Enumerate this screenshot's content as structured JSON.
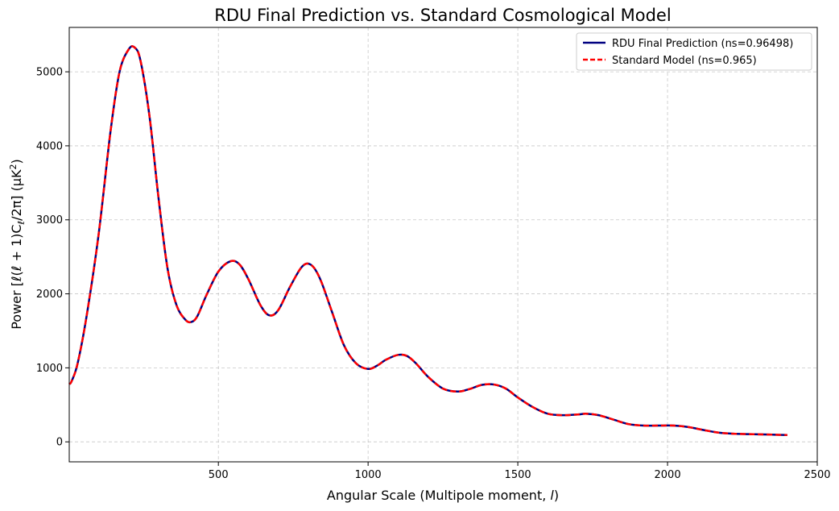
{
  "chart_data": {
    "type": "line",
    "title": "RDU Final Prediction vs. Standard Cosmological Model",
    "xlabel_main": "Angular Scale (Multipole moment, ",
    "xlabel_var": "l",
    "xlabel_end": ")",
    "ylabel": "Power [ℓ(ℓ + 1)C",
    "ylabel_sub": "ℓ",
    "ylabel_mid": "/2π] (μK",
    "ylabel_sup": "2",
    "ylabel_end": ")",
    "xlim": [
      2,
      2500
    ],
    "ylim": [
      -270,
      5600
    ],
    "xticks": [
      500,
      1000,
      1500,
      2000,
      2500
    ],
    "xtick_labels": [
      "500",
      "1000",
      "1500",
      "2000",
      "2500"
    ],
    "yticks": [
      0,
      1000,
      2000,
      3000,
      4000,
      5000
    ],
    "ytick_labels": [
      "0",
      "1000",
      "2000",
      "3000",
      "4000",
      "5000"
    ],
    "grid": true,
    "legend_position": "top-right",
    "series": [
      {
        "name": "RDU Final Prediction (ns=0.96498)",
        "color": "#000080",
        "style": "solid",
        "x": [
          2,
          10,
          30,
          60,
          100,
          140,
          170,
          200,
          220,
          240,
          270,
          300,
          330,
          360,
          390,
          410,
          430,
          460,
          500,
          540,
          570,
          600,
          640,
          670,
          700,
          740,
          780,
          810,
          840,
          880,
          920,
          960,
          1000,
          1030,
          1060,
          1100,
          1130,
          1160,
          1200,
          1250,
          1300,
          1340,
          1380,
          1420,
          1460,
          1500,
          1550,
          1600,
          1650,
          1700,
          1730,
          1770,
          1820,
          1870,
          1920,
          1970,
          2020,
          2070,
          2120,
          2170,
          2220,
          2270,
          2320,
          2370,
          2400
        ],
        "y": [
          780,
          820,
          1060,
          1700,
          2800,
          4200,
          5000,
          5300,
          5330,
          5150,
          4400,
          3300,
          2350,
          1850,
          1650,
          1620,
          1700,
          1980,
          2300,
          2440,
          2400,
          2200,
          1850,
          1710,
          1780,
          2100,
          2370,
          2390,
          2200,
          1750,
          1300,
          1060,
          985,
          1030,
          1110,
          1175,
          1160,
          1060,
          880,
          720,
          680,
          715,
          770,
          775,
          720,
          600,
          470,
          380,
          360,
          370,
          380,
          360,
          300,
          240,
          220,
          220,
          220,
          200,
          160,
          125,
          110,
          105,
          100,
          95,
          92
        ]
      },
      {
        "name": "Standard Model (ns=0.965)",
        "color": "#ff0000",
        "style": "dashed",
        "x": [
          2,
          10,
          30,
          60,
          100,
          140,
          170,
          200,
          220,
          240,
          270,
          300,
          330,
          360,
          390,
          410,
          430,
          460,
          500,
          540,
          570,
          600,
          640,
          670,
          700,
          740,
          780,
          810,
          840,
          880,
          920,
          960,
          1000,
          1030,
          1060,
          1100,
          1130,
          1160,
          1200,
          1250,
          1300,
          1340,
          1380,
          1420,
          1460,
          1500,
          1550,
          1600,
          1650,
          1700,
          1730,
          1770,
          1820,
          1870,
          1920,
          1970,
          2020,
          2070,
          2120,
          2170,
          2220,
          2270,
          2320,
          2370,
          2400
        ],
        "y": [
          780,
          820,
          1060,
          1700,
          2800,
          4200,
          5000,
          5300,
          5330,
          5150,
          4400,
          3300,
          2350,
          1850,
          1650,
          1620,
          1700,
          1980,
          2300,
          2440,
          2400,
          2200,
          1850,
          1710,
          1780,
          2100,
          2370,
          2390,
          2200,
          1750,
          1300,
          1060,
          985,
          1030,
          1110,
          1175,
          1160,
          1060,
          880,
          720,
          680,
          715,
          770,
          775,
          720,
          600,
          470,
          380,
          360,
          370,
          380,
          360,
          300,
          240,
          220,
          220,
          220,
          200,
          160,
          125,
          110,
          105,
          100,
          95,
          92
        ]
      }
    ]
  }
}
